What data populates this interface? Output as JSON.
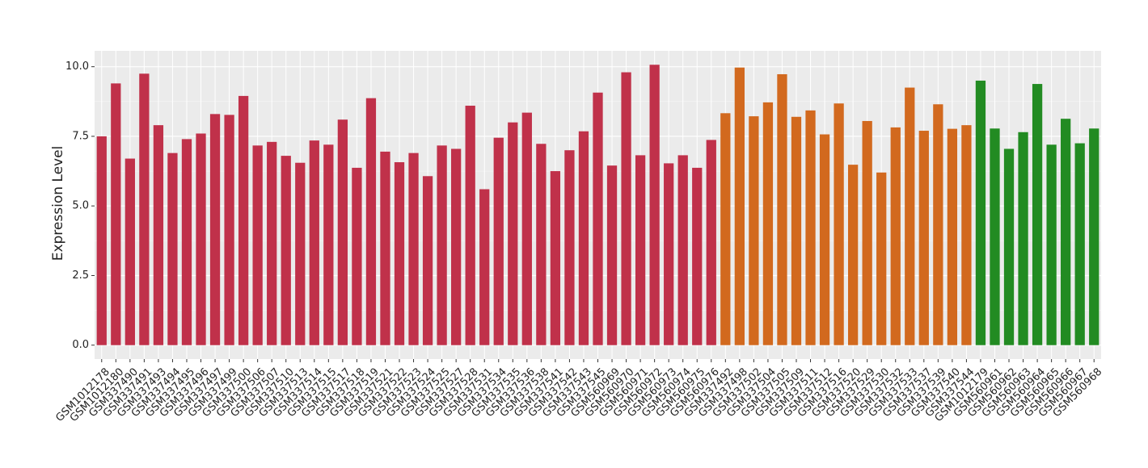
{
  "chart_data": {
    "type": "bar",
    "y_label": "Expression Level",
    "categories": [
      "GSM1012178",
      "GSM1012180",
      "GSM337490",
      "GSM337491",
      "GSM337493",
      "GSM337494",
      "GSM337495",
      "GSM337496",
      "GSM337497",
      "GSM337499",
      "GSM337500",
      "GSM337506",
      "GSM337507",
      "GSM337510",
      "GSM337513",
      "GSM337514",
      "GSM337515",
      "GSM337517",
      "GSM337518",
      "GSM337519",
      "GSM337521",
      "GSM337522",
      "GSM337523",
      "GSM337524",
      "GSM337525",
      "GSM337527",
      "GSM337528",
      "GSM337531",
      "GSM337534",
      "GSM337535",
      "GSM337536",
      "GSM337538",
      "GSM337541",
      "GSM337542",
      "GSM337543",
      "GSM337545",
      "GSM560969",
      "GSM560970",
      "GSM560971",
      "GSM560972",
      "GSM560973",
      "GSM560974",
      "GSM560975",
      "GSM560976",
      "GSM337492",
      "GSM337498",
      "GSM337502",
      "GSM337504",
      "GSM337505",
      "GSM337509",
      "GSM337511",
      "GSM337512",
      "GSM337516",
      "GSM337520",
      "GSM337529",
      "GSM337530",
      "GSM337532",
      "GSM337533",
      "GSM337537",
      "GSM337539",
      "GSM337540",
      "GSM337544",
      "GSM1012179",
      "GSM560961",
      "GSM560962",
      "GSM560963",
      "GSM560964",
      "GSM560965",
      "GSM560966",
      "GSM560967",
      "GSM560968"
    ],
    "values": [
      7.5,
      9.4,
      6.7,
      9.75,
      7.9,
      6.9,
      7.4,
      7.6,
      8.3,
      8.27,
      8.95,
      7.17,
      7.3,
      6.8,
      6.55,
      7.35,
      7.2,
      8.1,
      6.37,
      8.87,
      6.95,
      6.57,
      6.9,
      6.07,
      7.17,
      7.05,
      8.6,
      5.6,
      7.45,
      8.0,
      8.35,
      7.23,
      6.25,
      7.0,
      7.68,
      9.07,
      6.45,
      9.8,
      6.82,
      10.07,
      6.53,
      6.82,
      6.37,
      7.37,
      8.33,
      9.97,
      8.22,
      8.72,
      9.73,
      8.2,
      8.43,
      7.57,
      8.68,
      6.48,
      8.05,
      6.2,
      7.82,
      9.25,
      7.7,
      8.65,
      7.77,
      7.9,
      9.5,
      7.78,
      7.05,
      7.65,
      9.38,
      7.2,
      8.13,
      7.25,
      7.78
    ],
    "colors": [
      "#c0314a",
      "#c0314a",
      "#c0314a",
      "#c0314a",
      "#c0314a",
      "#c0314a",
      "#c0314a",
      "#c0314a",
      "#c0314a",
      "#c0314a",
      "#c0314a",
      "#c0314a",
      "#c0314a",
      "#c0314a",
      "#c0314a",
      "#c0314a",
      "#c0314a",
      "#c0314a",
      "#c0314a",
      "#c0314a",
      "#c0314a",
      "#c0314a",
      "#c0314a",
      "#c0314a",
      "#c0314a",
      "#c0314a",
      "#c0314a",
      "#c0314a",
      "#c0314a",
      "#c0314a",
      "#c0314a",
      "#c0314a",
      "#c0314a",
      "#c0314a",
      "#c0314a",
      "#c0314a",
      "#c0314a",
      "#c0314a",
      "#c0314a",
      "#c0314a",
      "#c0314a",
      "#c0314a",
      "#c0314a",
      "#c0314a",
      "#d2691e",
      "#d2691e",
      "#d2691e",
      "#d2691e",
      "#d2691e",
      "#d2691e",
      "#d2691e",
      "#d2691e",
      "#d2691e",
      "#d2691e",
      "#d2691e",
      "#d2691e",
      "#d2691e",
      "#d2691e",
      "#d2691e",
      "#d2691e",
      "#d2691e",
      "#d2691e",
      "#228b22",
      "#228b22",
      "#228b22",
      "#228b22",
      "#228b22",
      "#228b22",
      "#228b22",
      "#228b22",
      "#228b22"
    ],
    "ylim": [
      -0.5,
      10.57
    ],
    "yticks": [
      {
        "value": 0,
        "label": "0.0"
      },
      {
        "value": 2.5,
        "label": "2.5"
      },
      {
        "value": 5,
        "label": "5.0"
      },
      {
        "value": 7.5,
        "label": "7.5"
      },
      {
        "value": 10,
        "label": "10.0"
      }
    ],
    "grid": true
  }
}
